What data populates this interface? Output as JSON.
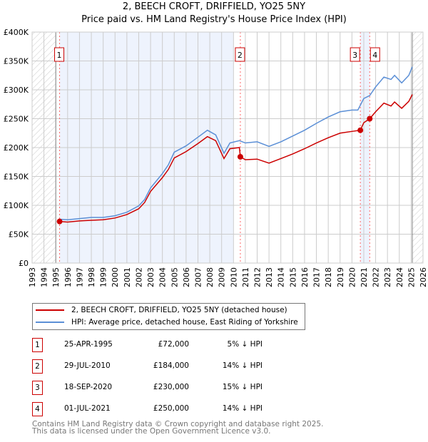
{
  "chart_data": {
    "type": "line",
    "title": "2, BEECH CROFT, DRIFFIELD, YO25 5NY",
    "subtitle": "Price paid vs. HM Land Registry's House Price Index (HPI)",
    "xlim": [
      1993,
      2026
    ],
    "ylim": [
      0,
      400000
    ],
    "grid": true,
    "x_ticks": [
      "1993",
      "1994",
      "1995",
      "1996",
      "1997",
      "1998",
      "1999",
      "2000",
      "2001",
      "2002",
      "2003",
      "2004",
      "2005",
      "2006",
      "2007",
      "2008",
      "2009",
      "2010",
      "2011",
      "2012",
      "2013",
      "2014",
      "2015",
      "2016",
      "2017",
      "2018",
      "2019",
      "2020",
      "2021",
      "2022",
      "2023",
      "2024",
      "2025",
      "2026"
    ],
    "y_ticks": [
      {
        "v": 0,
        "label": "£0"
      },
      {
        "v": 50000,
        "label": "£50K"
      },
      {
        "v": 100000,
        "label": "£100K"
      },
      {
        "v": 150000,
        "label": "£150K"
      },
      {
        "v": 200000,
        "label": "£200K"
      },
      {
        "v": 250000,
        "label": "£250K"
      },
      {
        "v": 300000,
        "label": "£300K"
      },
      {
        "v": 350000,
        "label": "£350K"
      },
      {
        "v": 400000,
        "label": "£400K"
      }
    ],
    "series": [
      {
        "name": "2, BEECH CROFT, DRIFFIELD, YO25 5NY (detached house)",
        "color": "#cc0000",
        "x": [
          1995.3,
          1996,
          1997,
          1998,
          1999,
          2000,
          2001,
          2002,
          2002.5,
          2003,
          2004,
          2004.5,
          2005,
          2006,
          2007,
          2007.8,
          2008.5,
          2009.2,
          2009.7,
          2010.5,
          2010.58,
          2011,
          2012,
          2013,
          2014,
          2015,
          2016,
          2017,
          2018,
          2019,
          2020,
          2020.7,
          2021,
          2021.5,
          2022,
          2022.7,
          2023.3,
          2023.6,
          2024.2,
          2024.8,
          2025.1
        ],
        "y": [
          72000,
          71000,
          73000,
          74000,
          75000,
          78000,
          84000,
          94000,
          105000,
          124000,
          148000,
          162000,
          182000,
          193000,
          207000,
          219000,
          212000,
          181000,
          198000,
          200000,
          184000,
          179000,
          180000,
          173000,
          181000,
          189000,
          198000,
          208000,
          217000,
          225000,
          228000,
          230000,
          243000,
          250000,
          262000,
          277000,
          272000,
          279000,
          268000,
          280000,
          292000
        ]
      },
      {
        "name": "HPI: Average price, detached house, East Riding of Yorkshire",
        "color": "#5b8fd6",
        "x": [
          1995.3,
          1996,
          1997,
          1998,
          1999,
          2000,
          2001,
          2002,
          2002.5,
          2003,
          2004,
          2004.5,
          2005,
          2006,
          2007,
          2007.8,
          2008.5,
          2009.2,
          2009.7,
          2010.5,
          2011,
          2012,
          2013,
          2014,
          2015,
          2016,
          2017,
          2018,
          2019,
          2020,
          2020.5,
          2021,
          2021.5,
          2022,
          2022.7,
          2023.3,
          2023.6,
          2024.2,
          2024.8,
          2025.1
        ],
        "y": [
          76000,
          75000,
          77000,
          79000,
          79000,
          82000,
          88000,
          99000,
          110000,
          130000,
          155000,
          170000,
          192000,
          203000,
          218000,
          230000,
          222000,
          190000,
          208000,
          212000,
          208000,
          210000,
          202000,
          210000,
          220000,
          230000,
          242000,
          253000,
          262000,
          265000,
          265000,
          285000,
          290000,
          305000,
          322000,
          318000,
          325000,
          312000,
          325000,
          340000
        ]
      }
    ],
    "transactions": [
      {
        "id": "1",
        "x": 1995.32,
        "price": 72000,
        "date": "25-APR-1995",
        "price_label": "£72,000",
        "hpi": "5% ↓ HPI"
      },
      {
        "id": "2",
        "x": 2010.58,
        "price": 184000,
        "date": "29-JUL-2010",
        "price_label": "£184,000",
        "hpi": "14% ↓ HPI"
      },
      {
        "id": "3",
        "x": 2020.71,
        "price": 230000,
        "date": "18-SEP-2020",
        "price_label": "£230,000",
        "hpi": "15% ↓ HPI"
      },
      {
        "id": "4",
        "x": 2021.5,
        "price": 250000,
        "date": "01-JUL-2021",
        "price_label": "£250,000",
        "hpi": "14% ↓ HPI"
      }
    ],
    "shaded_ranges": [
      [
        1995.32,
        2010.0
      ],
      [
        2020.71,
        2021.5
      ]
    ],
    "hatched_ranges": [
      [
        1993,
        1995.0
      ],
      [
        2025.1,
        2026
      ]
    ]
  },
  "footer": {
    "line1": "Contains HM Land Registry data © Crown copyright and database right 2025.",
    "line2": "This data is licensed under the Open Government Licence v3.0."
  }
}
